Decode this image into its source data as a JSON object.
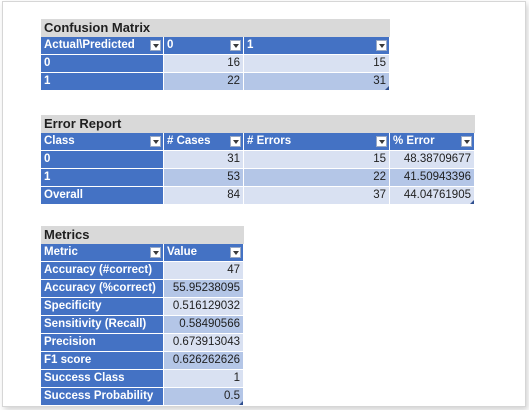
{
  "confusion_matrix": {
    "title": "Confusion Matrix",
    "headers": [
      "Actual\\Predicted",
      "0",
      "1"
    ],
    "rows": [
      [
        "0",
        "16",
        "15"
      ],
      [
        "1",
        "22",
        "31"
      ]
    ]
  },
  "error_report": {
    "title": "Error Report",
    "headers": [
      "Class",
      "# Cases",
      "# Errors",
      "% Error"
    ],
    "rows": [
      [
        "0",
        "31",
        "15",
        "48.38709677"
      ],
      [
        "1",
        "53",
        "22",
        "41.50943396"
      ],
      [
        "Overall",
        "84",
        "37",
        "44.04761905"
      ]
    ]
  },
  "metrics": {
    "title": "Metrics",
    "headers": [
      "Metric",
      "Value"
    ],
    "rows": [
      [
        "Accuracy (#correct)",
        "47"
      ],
      [
        "Accuracy (%correct)",
        "55.95238095"
      ],
      [
        "Specificity",
        "0.516129032"
      ],
      [
        "Sensitivity (Recall)",
        "0.58490566"
      ],
      [
        "Precision",
        "0.673913043"
      ],
      [
        "F1 score",
        "0.626262626"
      ],
      [
        "Success Class",
        "1"
      ],
      [
        "Success Probability",
        "0.5"
      ]
    ]
  },
  "colors": {
    "header_blue": "#4472c4",
    "band_light": "#d9e1f2",
    "band_dark": "#b4c6e7",
    "title_gray": "#d9d9d9"
  }
}
